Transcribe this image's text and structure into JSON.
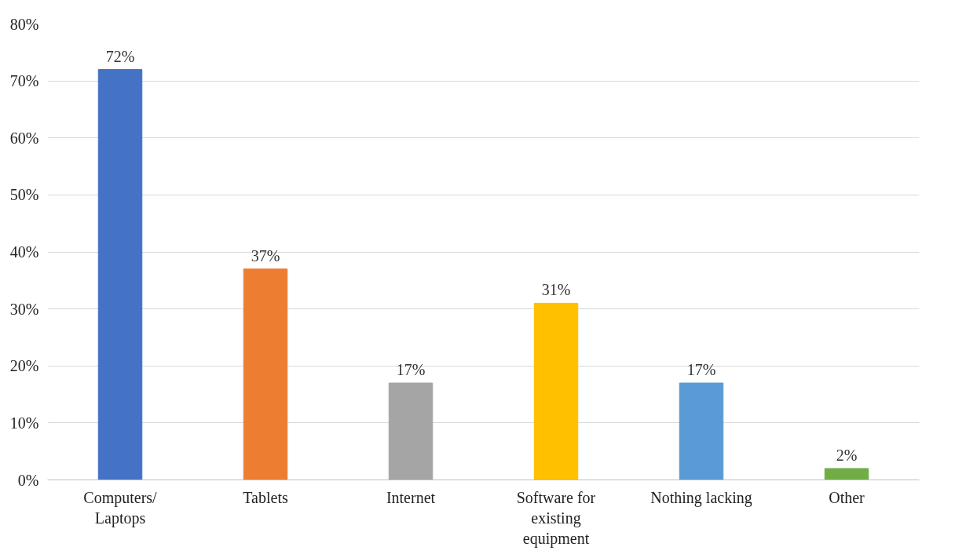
{
  "chart_data": {
    "type": "bar",
    "categories": [
      "Computers/ Laptops",
      "Tablets",
      "Internet",
      "Software for existing equipment",
      "Nothing lacking",
      "Other"
    ],
    "values": [
      72,
      37,
      17,
      31,
      17,
      2
    ],
    "colors": [
      "#4472c4",
      "#ed7d31",
      "#a5a5a5",
      "#ffc000",
      "#5b9bd5",
      "#70ad47"
    ],
    "value_labels": [
      "72%",
      "37%",
      "17%",
      "31%",
      "17%",
      "2%"
    ],
    "ylim": [
      0,
      80
    ],
    "yticks": [
      {
        "value": 0,
        "label": "0%"
      },
      {
        "value": 10,
        "label": "10%"
      },
      {
        "value": 20,
        "label": "20%"
      },
      {
        "value": 30,
        "label": "30%"
      },
      {
        "value": 40,
        "label": "40%"
      },
      {
        "value": 50,
        "label": "50%"
      },
      {
        "value": 60,
        "label": "60%"
      },
      {
        "value": 70,
        "label": "70%"
      },
      {
        "value": 80,
        "label": "80%"
      }
    ],
    "grid": "y"
  }
}
